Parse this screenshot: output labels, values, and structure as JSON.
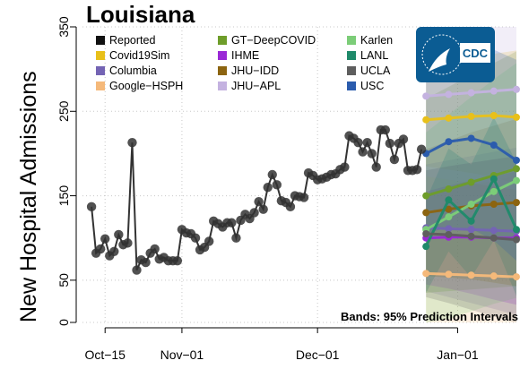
{
  "chart_data": {
    "type": "line",
    "title": "Louisiana",
    "ylabel": "New Hospital Admissions",
    "xlabel": "",
    "ylim": [
      0,
      350
    ],
    "xlim": [
      "2021-10-10",
      "2022-01-14"
    ],
    "yticks": [
      0,
      50,
      150,
      250,
      350
    ],
    "xticks": [
      {
        "date": "2021-10-15",
        "label": "Oct−15"
      },
      {
        "date": "2021-11-01",
        "label": "Nov−01"
      },
      {
        "date": "2021-12-01",
        "label": "Dec−01"
      },
      {
        "date": "2022-01-01",
        "label": "Jan−01"
      }
    ],
    "grid": true,
    "legend_placement": "top",
    "annotation": "Bands: 95% Prediction Intervals",
    "logo_text": "CDC",
    "reported": {
      "name": "Reported",
      "color": "#000000",
      "start": "2021-10-12",
      "values": [
        137,
        82,
        87,
        99,
        79,
        84,
        104,
        92,
        94,
        213,
        62,
        74,
        71,
        82,
        87,
        75,
        77,
        73,
        73,
        73,
        110,
        106,
        105,
        100,
        86,
        89,
        96,
        120,
        117,
        113,
        118,
        118,
        100,
        121,
        128,
        123,
        130,
        143,
        134,
        160,
        175,
        163,
        144,
        142,
        137,
        150,
        149,
        148,
        177,
        174,
        169,
        170,
        172,
        175,
        176,
        181,
        184,
        221,
        218,
        213,
        202,
        213,
        200,
        184,
        228,
        228,
        212,
        193,
        212,
        217,
        180,
        180,
        181,
        205
      ]
    },
    "forecast": {
      "start": "2021-12-25",
      "end": "2022-01-14",
      "band": "95% prediction interval",
      "series": [
        {
          "name": "Covid19Sim",
          "color": "#e8c01a",
          "values": [
            240,
            242,
            244,
            245,
            243
          ]
        },
        {
          "name": "Columbia",
          "color": "#7464b4",
          "values": [
            112,
            111,
            110,
            109,
            108
          ]
        },
        {
          "name": "Google−HSPH",
          "color": "#f5b97a",
          "values": [
            58,
            57,
            56,
            55,
            54
          ]
        },
        {
          "name": "GT−DeepCOVID",
          "color": "#6e9d2a",
          "values": [
            150,
            158,
            166,
            174,
            182
          ]
        },
        {
          "name": "IHME",
          "color": "#9a28d6",
          "values": [
            100,
            101,
            101,
            100,
            100
          ]
        },
        {
          "name": "JHU−IDD",
          "color": "#8c6410",
          "values": [
            130,
            134,
            138,
            140,
            142
          ]
        },
        {
          "name": "JHU−APL",
          "color": "#c4b2e0",
          "values": [
            268,
            270,
            272,
            274,
            276
          ]
        },
        {
          "name": "Karlen",
          "color": "#7ccd78",
          "values": [
            110,
            125,
            140,
            155,
            168
          ]
        },
        {
          "name": "LANL",
          "color": "#1f8a6a",
          "values": [
            90,
            145,
            120,
            170,
            110
          ]
        },
        {
          "name": "UCLA",
          "color": "#5e5e5e",
          "values": [
            105,
            104,
            102,
            100,
            98
          ]
        },
        {
          "name": "USC",
          "color": "#2b5cad",
          "values": [
            200,
            214,
            218,
            210,
            192
          ]
        }
      ]
    },
    "legend": [
      {
        "name": "Reported",
        "color": "#111111"
      },
      {
        "name": "Covid19Sim",
        "color": "#e8c01a"
      },
      {
        "name": "Columbia",
        "color": "#7464b4"
      },
      {
        "name": "Google−HSPH",
        "color": "#f5b97a"
      },
      {
        "name": "GT−DeepCOVID",
        "color": "#6e9d2a"
      },
      {
        "name": "IHME",
        "color": "#9a28d6"
      },
      {
        "name": "JHU−IDD",
        "color": "#8c6410"
      },
      {
        "name": "JHU−APL",
        "color": "#c4b2e0"
      },
      {
        "name": "Karlen",
        "color": "#7ccd78"
      },
      {
        "name": "LANL",
        "color": "#1f8a6a"
      },
      {
        "name": "UCLA",
        "color": "#5e5e5e"
      },
      {
        "name": "USC",
        "color": "#2b5cad"
      }
    ],
    "colors": {
      "cdc_blue": "#0b5c93",
      "grid": "#c8c8c8"
    }
  }
}
